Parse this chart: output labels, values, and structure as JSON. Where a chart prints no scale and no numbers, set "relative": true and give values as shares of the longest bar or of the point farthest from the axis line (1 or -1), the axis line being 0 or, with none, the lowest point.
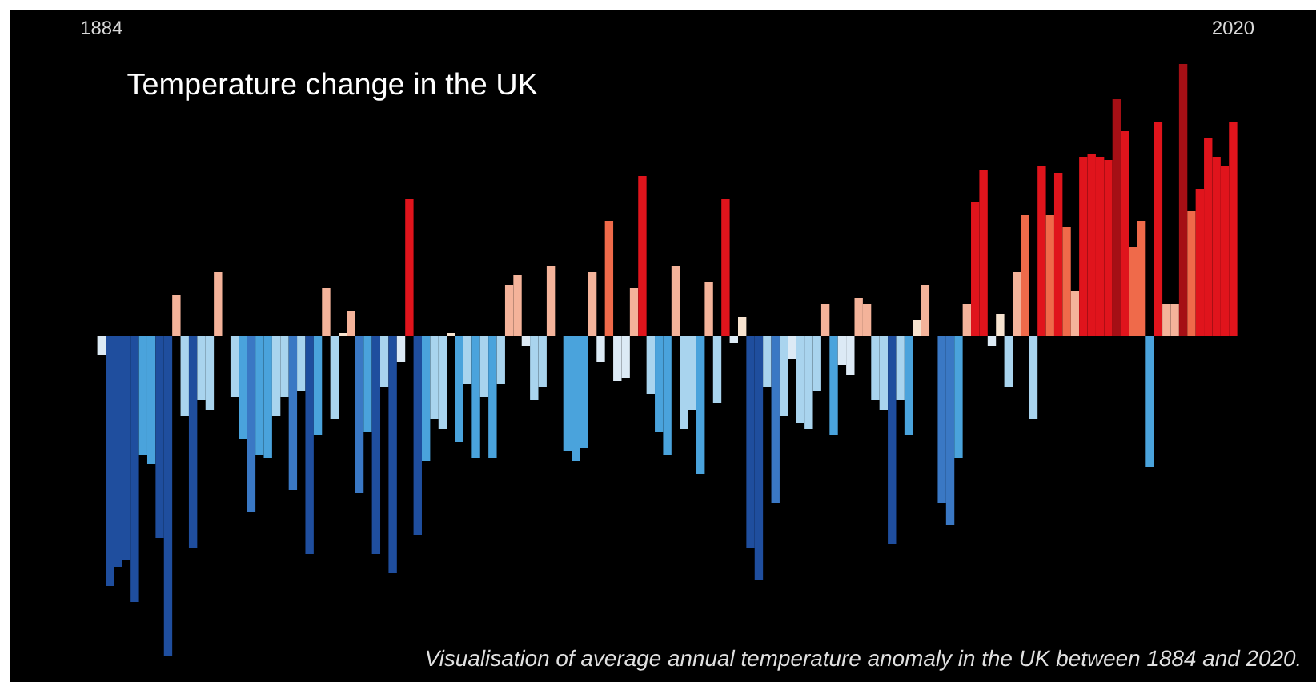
{
  "chart_data": {
    "type": "bar",
    "relative": true,
    "title": "Temperature change in the UK",
    "annotations": [
      "Visualisation of average annual temperature anomaly in the UK between 1884 and 2020."
    ],
    "categories": [
      "1884",
      null,
      null,
      null,
      null,
      null,
      null,
      null,
      null,
      null,
      null,
      null,
      null,
      null,
      null,
      null,
      null,
      null,
      null,
      null,
      null,
      null,
      null,
      null,
      null,
      null,
      null,
      null,
      null,
      null,
      null,
      null,
      null,
      null,
      null,
      null,
      null,
      null,
      null,
      null,
      null,
      null,
      null,
      null,
      null,
      null,
      null,
      null,
      null,
      null,
      null,
      null,
      null,
      null,
      null,
      null,
      null,
      null,
      null,
      null,
      null,
      null,
      null,
      null,
      null,
      null,
      null,
      null,
      null,
      null,
      null,
      null,
      null,
      null,
      null,
      null,
      null,
      null,
      null,
      null,
      null,
      null,
      null,
      null,
      null,
      null,
      null,
      null,
      null,
      null,
      null,
      null,
      null,
      null,
      null,
      null,
      null,
      null,
      null,
      null,
      null,
      null,
      null,
      null,
      null,
      null,
      null,
      null,
      null,
      null,
      null,
      null,
      null,
      null,
      null,
      null,
      null,
      null,
      null,
      null,
      null,
      null,
      null,
      null,
      null,
      null,
      null,
      null,
      null,
      null,
      null,
      null,
      null,
      null,
      null,
      null,
      "2020"
    ],
    "values": [
      -0.06,
      -0.78,
      -0.72,
      -0.7,
      -0.83,
      -0.37,
      -0.4,
      -0.63,
      -1.0,
      0.13,
      -0.25,
      -0.66,
      -0.2,
      -0.23,
      0.2,
      0,
      -0.19,
      -0.32,
      -0.55,
      -0.37,
      -0.38,
      -0.25,
      -0.19,
      -0.48,
      -0.17,
      -0.68,
      -0.31,
      0.15,
      -0.26,
      0.01,
      0.08,
      -0.49,
      -0.3,
      -0.68,
      -0.16,
      -0.74,
      -0.08,
      0.43,
      -0.62,
      -0.39,
      -0.26,
      -0.29,
      0.01,
      -0.33,
      -0.15,
      -0.38,
      -0.19,
      -0.38,
      -0.15,
      0.16,
      0.19,
      -0.03,
      -0.2,
      -0.16,
      0.22,
      0,
      -0.36,
      -0.39,
      -0.35,
      0.2,
      -0.08,
      0.36,
      -0.14,
      -0.13,
      0.15,
      0.5,
      -0.18,
      -0.3,
      -0.37,
      0.22,
      -0.29,
      -0.23,
      -0.43,
      0.17,
      -0.21,
      0.43,
      -0.02,
      0.06,
      -0.66,
      -0.76,
      -0.16,
      -0.52,
      -0.25,
      -0.07,
      -0.27,
      -0.29,
      -0.17,
      0.1,
      -0.31,
      -0.09,
      -0.12,
      0.12,
      0.1,
      -0.2,
      -0.23,
      -0.65,
      -0.2,
      -0.31,
      0.05,
      0.16,
      0,
      -0.52,
      -0.59,
      -0.38,
      0.1,
      0.42,
      0.52,
      -0.03,
      0.07,
      -0.16,
      0.2,
      0.38,
      -0.26,
      0.53,
      0.38,
      0.51,
      0.34,
      0.14,
      0.56,
      0.57,
      0.56,
      0.55,
      0.74,
      0.64,
      0.28,
      0.36,
      -0.41,
      0.67,
      0.1,
      0.1,
      0.85,
      0.39,
      0.46,
      0.62,
      0.56,
      0.53,
      0.67
    ],
    "colors": [
      "#dceaf5",
      "#1f4e9e",
      "#1f4e9e",
      "#1f4e9e",
      "#1f4e9e",
      "#4aa3dc",
      "#4aa3dc",
      "#1f4e9e",
      "#1f4e9e",
      "#f4b39a",
      "#a9d4ee",
      "#1f4e9e",
      "#a9d4ee",
      "#a9d4ee",
      "#f4b39a",
      "#f7e3cf",
      "#a9d4ee",
      "#4aa3dc",
      "#3a78c4",
      "#4aa3dc",
      "#4aa3dc",
      "#a9d4ee",
      "#a9d4ee",
      "#3a78c4",
      "#a9d4ee",
      "#1f4e9e",
      "#4aa3dc",
      "#f4b39a",
      "#a9d4ee",
      "#f7e3cf",
      "#f4b39a",
      "#3a78c4",
      "#4aa3dc",
      "#1f4e9e",
      "#a9d4ee",
      "#1f4e9e",
      "#dceaf5",
      "#e0141c",
      "#1f4e9e",
      "#4aa3dc",
      "#a9d4ee",
      "#a9d4ee",
      "#f7e3cf",
      "#4aa3dc",
      "#a9d4ee",
      "#4aa3dc",
      "#a9d4ee",
      "#4aa3dc",
      "#a9d4ee",
      "#f4b39a",
      "#f4b39a",
      "#dceaf5",
      "#a9d4ee",
      "#a9d4ee",
      "#f4b39a",
      "#f7e3cf",
      "#4aa3dc",
      "#4aa3dc",
      "#4aa3dc",
      "#f4b39a",
      "#dceaf5",
      "#ef6a4a",
      "#dceaf5",
      "#dceaf5",
      "#f4b39a",
      "#e0141c",
      "#a9d4ee",
      "#4aa3dc",
      "#4aa3dc",
      "#f4b39a",
      "#a9d4ee",
      "#a9d4ee",
      "#4aa3dc",
      "#f4b39a",
      "#a9d4ee",
      "#e0141c",
      "#dceaf5",
      "#f7e3cf",
      "#1f4e9e",
      "#1f4e9e",
      "#a9d4ee",
      "#3a78c4",
      "#a9d4ee",
      "#dceaf5",
      "#a9d4ee",
      "#a9d4ee",
      "#a9d4ee",
      "#f4b39a",
      "#4aa3dc",
      "#dceaf5",
      "#dceaf5",
      "#f4b39a",
      "#f4b39a",
      "#a9d4ee",
      "#a9d4ee",
      "#1f4e9e",
      "#a9d4ee",
      "#4aa3dc",
      "#f7e3cf",
      "#f4b39a",
      "#f7e3cf",
      "#3a78c4",
      "#3a78c4",
      "#4aa3dc",
      "#f4b39a",
      "#e0141c",
      "#e0141c",
      "#dceaf5",
      "#f7e3cf",
      "#a9d4ee",
      "#f4b39a",
      "#ef6a4a",
      "#a9d4ee",
      "#e0141c",
      "#ef6a4a",
      "#e0141c",
      "#ef6a4a",
      "#f4b39a",
      "#e0141c",
      "#e0141c",
      "#e0141c",
      "#e0141c",
      "#a50f15",
      "#e0141c",
      "#ef6a4a",
      "#ef6a4a",
      "#4aa3dc",
      "#e0141c",
      "#f4b39a",
      "#f4b39a",
      "#a50f15",
      "#ef6a4a",
      "#e0141c",
      "#e0141c",
      "#e0141c",
      "#e0141c",
      "#e0141c"
    ]
  }
}
